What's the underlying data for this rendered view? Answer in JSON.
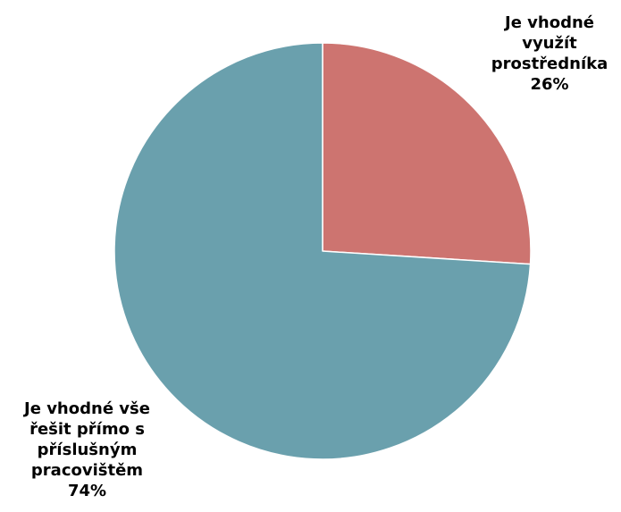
{
  "chart_data": {
    "type": "pie",
    "title": "",
    "slices": [
      {
        "label_lines": [
          "Je vhodné",
          "využít",
          "prostředníka"
        ],
        "percent_label": "26%",
        "value": 26,
        "color": "#cd7470"
      },
      {
        "label_lines": [
          "Je vhodné vše",
          "řešit přímo s",
          "příslušným",
          "pracovištěm"
        ],
        "percent_label": "74%",
        "value": 74,
        "color": "#6aa0ad"
      }
    ],
    "start_angle_deg": 0,
    "direction": "clockwise",
    "border_color": "#ffffff",
    "legend": "none"
  }
}
